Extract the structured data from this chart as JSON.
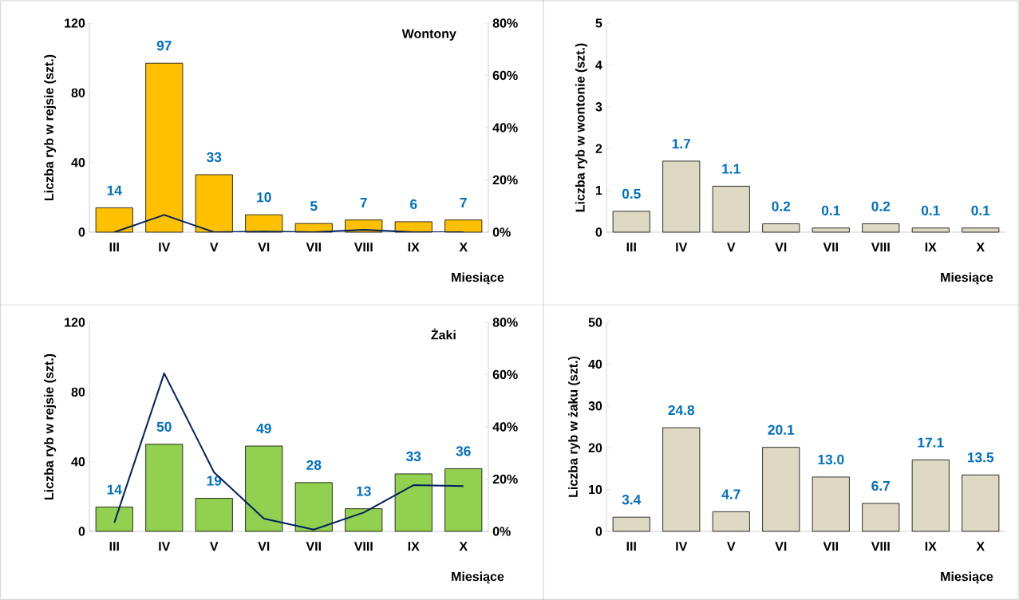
{
  "chart_data": [
    {
      "type": "bar",
      "title": "Wontony",
      "xlabel": "Miesiące",
      "ylabel": "Liczba ryb w rejsie (szt.)",
      "categories": [
        "III",
        "IV",
        "V",
        "VI",
        "VII",
        "VIII",
        "IX",
        "X"
      ],
      "ylim": [
        0,
        120
      ],
      "yticks": [
        0,
        40,
        80,
        120
      ],
      "y2lim": [
        0,
        80
      ],
      "y2ticks": [
        {
          "value": 0,
          "label": "0%"
        },
        {
          "value": 20,
          "label": "20%"
        },
        {
          "value": 40,
          "label": "40%"
        },
        {
          "value": 60,
          "label": "60%"
        },
        {
          "value": 80,
          "label": "80%"
        }
      ],
      "series": [
        {
          "color": "#ffc000",
          "values": [
            14,
            97,
            33,
            10,
            5,
            7,
            6,
            7
          ],
          "value_labels": [
            "14",
            "97",
            "33",
            "10",
            "5",
            "7",
            "6",
            "7"
          ]
        },
        {
          "type": "line",
          "axis": "y2",
          "color": "#002060",
          "values": [
            0,
            6.6,
            0,
            0.2,
            0,
            0.9,
            0,
            0
          ]
        }
      ]
    },
    {
      "type": "bar",
      "xlabel": "Miesiące",
      "ylabel": "Liczba ryb w wontonie (szt.)",
      "categories": [
        "III",
        "IV",
        "V",
        "VI",
        "VII",
        "VIII",
        "IX",
        "X"
      ],
      "ylim": [
        0,
        5
      ],
      "yticks": [
        0,
        1,
        2,
        3,
        4,
        5
      ],
      "series": [
        {
          "color": "#ddd9c3",
          "values": [
            0.5,
            1.7,
            1.1,
            0.2,
            0.1,
            0.2,
            0.1,
            0.1
          ],
          "value_labels": [
            "0.5",
            "1.7",
            "1.1",
            "0.2",
            "0.1",
            "0.2",
            "0.1",
            "0.1"
          ]
        }
      ]
    },
    {
      "type": "bar",
      "title": "Żaki",
      "xlabel": "Miesiące",
      "ylabel": "Liczba ryb w rejsie (szt.)",
      "categories": [
        "III",
        "IV",
        "V",
        "VI",
        "VII",
        "VIII",
        "IX",
        "X"
      ],
      "ylim": [
        0,
        120
      ],
      "yticks": [
        0,
        40,
        80,
        120
      ],
      "y2lim": [
        0,
        80
      ],
      "y2ticks": [
        {
          "value": 0,
          "label": "0%"
        },
        {
          "value": 20,
          "label": "20%"
        },
        {
          "value": 40,
          "label": "40%"
        },
        {
          "value": 60,
          "label": "60%"
        },
        {
          "value": 80,
          "label": "80%"
        }
      ],
      "series": [
        {
          "color": "#92d050",
          "values": [
            14,
            50,
            19,
            49,
            28,
            13,
            33,
            36
          ],
          "value_labels": [
            "14",
            "50",
            "19",
            "49",
            "28",
            "13",
            "33",
            "36"
          ]
        },
        {
          "type": "line",
          "axis": "y2",
          "color": "#002060",
          "values": [
            3.3,
            60.5,
            22.6,
            4.9,
            0.7,
            7.2,
            17.7,
            17.3
          ]
        }
      ]
    },
    {
      "type": "bar",
      "xlabel": "Miesiące",
      "ylabel": "Liczba ryb w żaku (szt.)",
      "categories": [
        "III",
        "IV",
        "V",
        "VI",
        "VII",
        "VIII",
        "IX",
        "X"
      ],
      "ylim": [
        0,
        50
      ],
      "yticks": [
        0,
        10,
        20,
        30,
        40,
        50
      ],
      "series": [
        {
          "color": "#ddd9c3",
          "values": [
            3.4,
            24.8,
            4.7,
            20.1,
            13.0,
            6.7,
            17.1,
            13.5
          ],
          "value_labels": [
            "3.4",
            "24.8",
            "4.7",
            "20.1",
            "13.0",
            "6.7",
            "17.1",
            "13.5"
          ]
        }
      ]
    }
  ]
}
